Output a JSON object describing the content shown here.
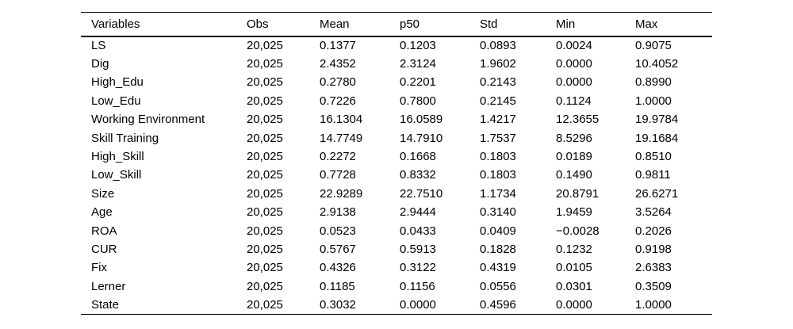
{
  "table": {
    "name": "summary-statistics",
    "columns": [
      "Variables",
      "Obs",
      "Mean",
      "p50",
      "Std",
      "Min",
      "Max"
    ],
    "rows": [
      [
        "LS",
        "20,025",
        "0.1377",
        "0.1203",
        "0.0893",
        "0.0024",
        "0.9075"
      ],
      [
        "Dig",
        "20,025",
        "2.4352",
        "2.3124",
        "1.9602",
        "0.0000",
        "10.4052"
      ],
      [
        "High_Edu",
        "20,025",
        "0.2780",
        "0.2201",
        "0.2143",
        "0.0000",
        "0.8990"
      ],
      [
        "Low_Edu",
        "20,025",
        "0.7226",
        "0.7800",
        "0.2145",
        "0.1124",
        "1.0000"
      ],
      [
        "Working Environment",
        "20,025",
        "16.1304",
        "16.0589",
        "1.4217",
        "12.3655",
        "19.9784"
      ],
      [
        "Skill Training",
        "20,025",
        "14.7749",
        "14.7910",
        "1.7537",
        "8.5296",
        "19.1684"
      ],
      [
        "High_Skill",
        "20,025",
        "0.2272",
        "0.1668",
        "0.1803",
        "0.0189",
        "0.8510"
      ],
      [
        "Low_Skill",
        "20,025",
        "0.7728",
        "0.8332",
        "0.1803",
        "0.1490",
        "0.9811"
      ],
      [
        "Size",
        "20,025",
        "22.9289",
        "22.7510",
        "1.1734",
        "20.8791",
        "26.6271"
      ],
      [
        "Age",
        "20,025",
        "2.9138",
        "2.9444",
        "0.3140",
        "1.9459",
        "3.5264"
      ],
      [
        "ROA",
        "20,025",
        "0.0523",
        "0.0433",
        "0.0409",
        "−0.0028",
        "0.2026"
      ],
      [
        "CUR",
        "20,025",
        "0.5767",
        "0.5913",
        "0.1828",
        "0.1232",
        "0.9198"
      ],
      [
        "Fix",
        "20,025",
        "0.4326",
        "0.3122",
        "0.4319",
        "0.0105",
        "2.6383"
      ],
      [
        "Lerner",
        "20,025",
        "0.1185",
        "0.1156",
        "0.0556",
        "0.0301",
        "0.3509"
      ],
      [
        "State",
        "20,025",
        "0.3032",
        "0.0000",
        "0.4596",
        "0.0000",
        "1.0000"
      ]
    ],
    "colors": {
      "text": "#000000",
      "rule": "#000000",
      "background": "#ffffff"
    }
  }
}
